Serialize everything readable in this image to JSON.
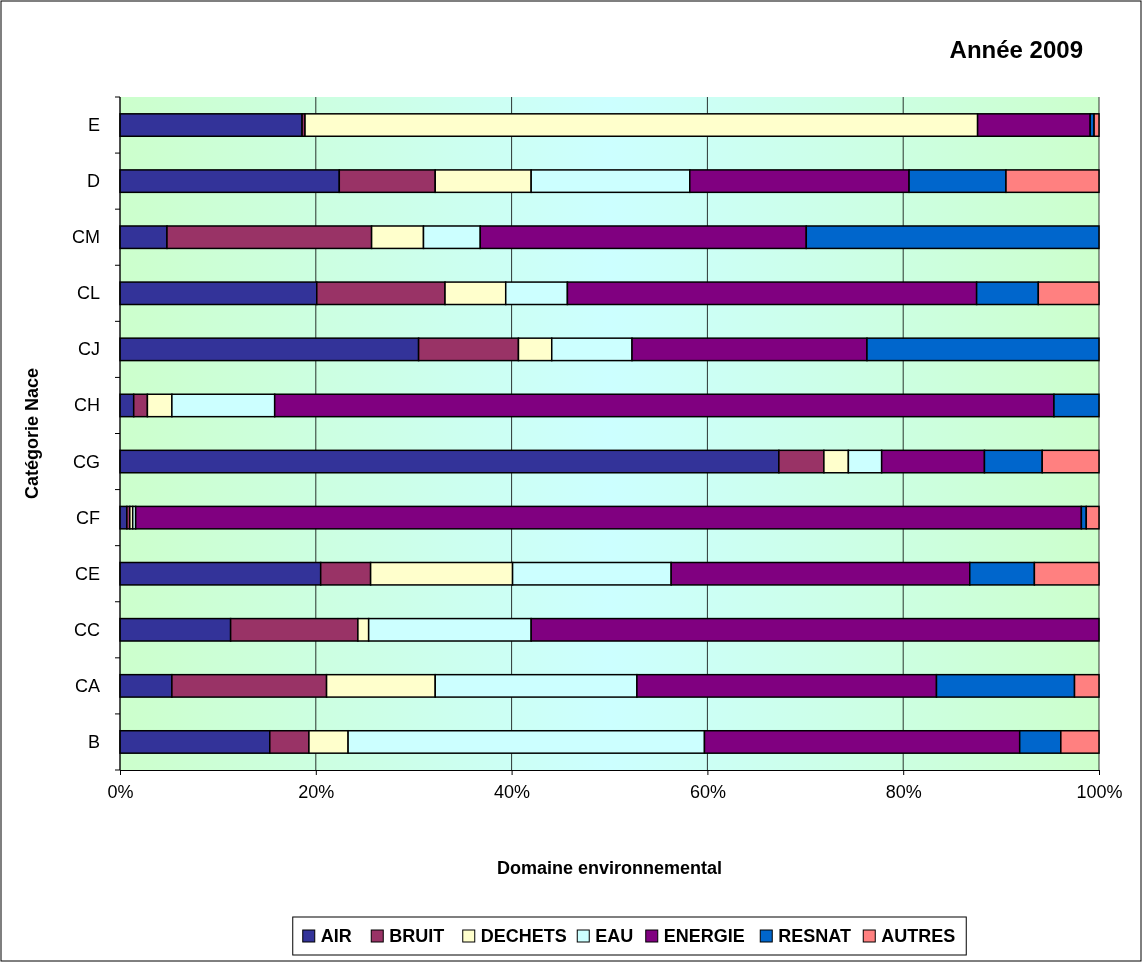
{
  "chart_data": {
    "type": "bar",
    "orientation": "horizontal",
    "stacked": true,
    "title": "Année 2009",
    "xlabel": "Domaine environnemental",
    "ylabel": "Catégorie Nace",
    "categories": [
      "E",
      "D",
      "CM",
      "CL",
      "CJ",
      "CH",
      "CG",
      "CF",
      "CE",
      "CC",
      "CA",
      "B"
    ],
    "xlim": [
      0,
      100
    ],
    "xticks": [
      {
        "value": 0,
        "label": "0%"
      },
      {
        "value": 20,
        "label": "20%"
      },
      {
        "value": 40,
        "label": "40%"
      },
      {
        "value": 60,
        "label": "60%"
      },
      {
        "value": 80,
        "label": "80%"
      },
      {
        "value": 100,
        "label": "100%"
      }
    ],
    "grid": "x",
    "legend": "bottom",
    "series": [
      {
        "name": "AIR",
        "color": "#333399",
        "values": [
          18.6,
          22.4,
          4.8,
          20.1,
          30.5,
          1.4,
          67.3,
          0.7,
          20.5,
          11.3,
          5.3,
          15.3
        ]
      },
      {
        "name": "BRUIT",
        "color": "#993366",
        "values": [
          0.3,
          9.8,
          20.9,
          13.1,
          10.2,
          1.4,
          4.6,
          0.3,
          5.1,
          13.0,
          15.8,
          4.0
        ]
      },
      {
        "name": "DECHETS",
        "color": "#ffffcc",
        "values": [
          68.7,
          9.8,
          5.3,
          6.2,
          3.4,
          2.5,
          2.5,
          0.3,
          14.5,
          1.1,
          11.1,
          4.0
        ]
      },
      {
        "name": "EAU",
        "color": "#ccffff",
        "values": [
          0,
          16.2,
          5.8,
          6.3,
          8.2,
          10.5,
          3.4,
          0.3,
          16.2,
          16.6,
          20.6,
          36.4
        ]
      },
      {
        "name": "ENERGIE",
        "color": "#800080",
        "values": [
          11.5,
          22.4,
          33.3,
          41.8,
          24.0,
          79.6,
          10.5,
          96.6,
          30.5,
          58.0,
          30.6,
          32.2
        ]
      },
      {
        "name": "RESNAT",
        "color": "#0066cc",
        "values": [
          0.4,
          9.9,
          29.9,
          6.3,
          23.7,
          4.6,
          5.9,
          0.5,
          6.6,
          0,
          14.1,
          4.2
        ]
      },
      {
        "name": "AUTRES",
        "color": "#ff8080",
        "values": [
          0.5,
          9.5,
          0,
          6.2,
          0,
          0,
          5.8,
          1.3,
          6.6,
          0,
          2.5,
          3.9
        ]
      }
    ]
  }
}
